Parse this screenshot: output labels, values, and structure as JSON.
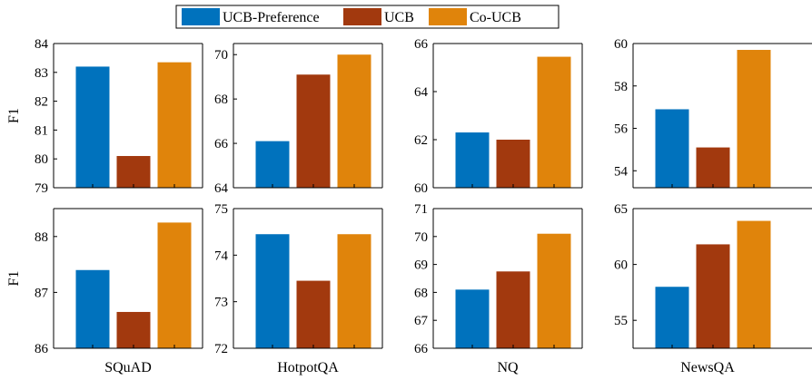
{
  "legend": [
    {
      "label": "UCB-Preference",
      "color": "#0072BD"
    },
    {
      "label": "UCB",
      "color": "#A2390E"
    },
    {
      "label": "Co-UCB",
      "color": "#E0840B"
    }
  ],
  "row_ylabel": "F1",
  "chart_data": [
    {
      "type": "bar",
      "dataset": "SQuAD",
      "row": 0,
      "categories": [
        "UCB-Preference",
        "UCB",
        "Co-UCB"
      ],
      "values": [
        83.2,
        80.1,
        83.35
      ],
      "ylim": [
        79,
        84
      ],
      "yticks": [
        79,
        80,
        81,
        82,
        83,
        84
      ],
      "ylabel": "F1",
      "xlabel": ""
    },
    {
      "type": "bar",
      "dataset": "HotpotQA",
      "row": 0,
      "categories": [
        "UCB-Preference",
        "UCB",
        "Co-UCB"
      ],
      "values": [
        66.1,
        69.1,
        70.0
      ],
      "ylim": [
        64,
        70.5
      ],
      "yticks": [
        64,
        66,
        68,
        70
      ],
      "ylabel": "",
      "xlabel": ""
    },
    {
      "type": "bar",
      "dataset": "NQ",
      "row": 0,
      "categories": [
        "UCB-Preference",
        "UCB",
        "Co-UCB"
      ],
      "values": [
        62.3,
        62.0,
        65.45
      ],
      "ylim": [
        60,
        66
      ],
      "yticks": [
        60,
        62,
        64,
        66
      ],
      "ylabel": "",
      "xlabel": ""
    },
    {
      "type": "bar",
      "dataset": "NewsQA",
      "row": 0,
      "categories": [
        "UCB-Preference",
        "UCB",
        "Co-UCB"
      ],
      "values": [
        56.9,
        55.1,
        59.7
      ],
      "ylim": [
        53.2,
        60
      ],
      "yticks": [
        54,
        56,
        58,
        60
      ],
      "ylabel": "",
      "xlabel": ""
    },
    {
      "type": "bar",
      "dataset": "SQuAD",
      "row": 1,
      "categories": [
        "UCB-Preference",
        "UCB",
        "Co-UCB"
      ],
      "values": [
        87.4,
        86.65,
        88.25
      ],
      "ylim": [
        86,
        88.5
      ],
      "yticks": [
        86,
        87,
        88
      ],
      "ylabel": "F1",
      "xlabel": "SQuAD"
    },
    {
      "type": "bar",
      "dataset": "HotpotQA",
      "row": 1,
      "categories": [
        "UCB-Preference",
        "UCB",
        "Co-UCB"
      ],
      "values": [
        74.45,
        73.45,
        74.45
      ],
      "ylim": [
        72,
        75
      ],
      "yticks": [
        72,
        73,
        74,
        75
      ],
      "ylabel": "",
      "xlabel": "HotpotQA"
    },
    {
      "type": "bar",
      "dataset": "NQ",
      "row": 1,
      "categories": [
        "UCB-Preference",
        "UCB",
        "Co-UCB"
      ],
      "values": [
        68.1,
        68.75,
        70.1
      ],
      "ylim": [
        66,
        71
      ],
      "yticks": [
        66,
        67,
        68,
        69,
        70,
        71
      ],
      "ylabel": "",
      "xlabel": "NQ"
    },
    {
      "type": "bar",
      "dataset": "NewsQA",
      "row": 1,
      "categories": [
        "UCB-Preference",
        "UCB",
        "Co-UCB"
      ],
      "values": [
        58.0,
        61.8,
        63.9
      ],
      "ylim": [
        52.5,
        65
      ],
      "yticks": [
        55,
        60,
        65
      ],
      "ylabel": "",
      "xlabel": "NewsQA"
    }
  ]
}
